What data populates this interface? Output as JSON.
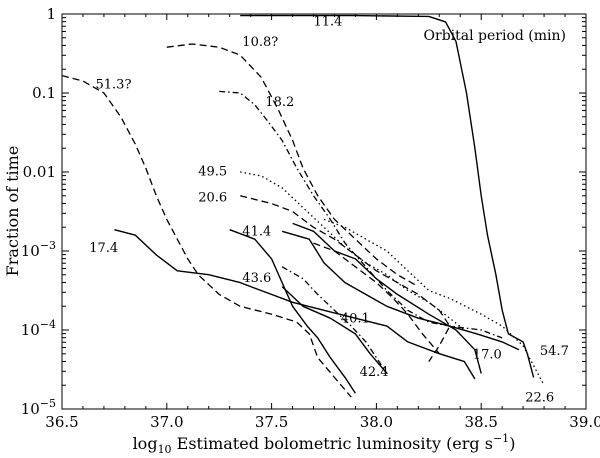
{
  "chart_data": {
    "type": "line",
    "title": "",
    "xlabel": "log10 Estimated bolometric luminosity (erg s−1)",
    "xlabel_parts": {
      "log": "log",
      "log_sub": "10",
      "main": " Estimated bolometric luminosity (erg s",
      "sup": "−1",
      "close": ")"
    },
    "ylabel": "Fraction of time",
    "xlim": [
      36.5,
      39.0
    ],
    "ylim_log10": [
      -5,
      0
    ],
    "yscale": "log",
    "x_ticks": [
      36.5,
      37.0,
      37.5,
      38.0,
      38.5,
      39.0
    ],
    "x_tick_labels": [
      "36.5",
      "37.0",
      "37.5",
      "38.0",
      "38.5",
      "39.0"
    ],
    "y_ticks_log10": [
      0,
      -1,
      -2,
      -3,
      -4,
      -5
    ],
    "y_tick_labels": [
      {
        "plain": "1"
      },
      {
        "plain": "0.1"
      },
      {
        "plain": "0.01"
      },
      {
        "base": "10",
        "exp": "−3"
      },
      {
        "base": "10",
        "exp": "−4"
      },
      {
        "base": "10",
        "exp": "−5"
      }
    ],
    "legend_title": "Orbital period (min)",
    "series": [
      {
        "name": "11.4",
        "style": "solid",
        "label_at": [
          37.7,
          -0.08
        ],
        "points": [
          [
            37.35,
            -0.02
          ],
          [
            37.9,
            -0.02
          ],
          [
            38.25,
            -0.03
          ],
          [
            38.33,
            -0.1
          ],
          [
            38.38,
            -0.35
          ],
          [
            38.43,
            -1.0
          ],
          [
            38.47,
            -1.7
          ],
          [
            38.5,
            -2.3
          ],
          [
            38.53,
            -2.8
          ],
          [
            38.57,
            -3.3
          ],
          [
            38.6,
            -3.75
          ],
          [
            38.63,
            -4.05
          ],
          [
            38.7,
            -4.15
          ],
          [
            38.72,
            -4.3
          ],
          [
            38.75,
            -4.6
          ]
        ]
      },
      {
        "name": "54.7",
        "style": "solid",
        "label_at": [
          38.78,
          -4.25
        ],
        "points": [
          [
            37.55,
            -2.75
          ],
          [
            37.68,
            -2.85
          ],
          [
            37.75,
            -3.15
          ],
          [
            37.85,
            -3.4
          ],
          [
            38.05,
            -3.7
          ],
          [
            38.2,
            -3.85
          ],
          [
            38.35,
            -3.95
          ],
          [
            38.48,
            -4.05
          ],
          [
            38.6,
            -4.15
          ],
          [
            38.68,
            -4.25
          ]
        ]
      },
      {
        "name": "41.4",
        "style": "solid",
        "label_at": [
          37.36,
          -2.74
        ],
        "points": [
          [
            37.3,
            -2.73
          ],
          [
            37.42,
            -2.85
          ],
          [
            37.5,
            -3.1
          ],
          [
            37.55,
            -3.4
          ],
          [
            37.6,
            -3.7
          ],
          [
            37.67,
            -3.95
          ],
          [
            37.72,
            -4.1
          ],
          [
            37.78,
            -4.35
          ],
          [
            37.85,
            -4.6
          ],
          [
            37.9,
            -4.8
          ]
        ]
      },
      {
        "name": "43.6",
        "style": "solid",
        "label_at": [
          37.36,
          -3.33
        ],
        "points": [
          [
            37.55,
            -3.45
          ],
          [
            37.65,
            -3.7
          ],
          [
            37.78,
            -3.85
          ],
          [
            37.9,
            -4.05
          ],
          [
            37.97,
            -4.3
          ],
          [
            38.05,
            -4.55
          ]
        ]
      },
      {
        "name": "17.4",
        "style": "solid",
        "label_at": [
          36.63,
          -2.95
        ],
        "points": [
          [
            36.75,
            -2.73
          ],
          [
            36.85,
            -2.8
          ],
          [
            36.95,
            -3.05
          ],
          [
            37.05,
            -3.25
          ],
          [
            37.2,
            -3.3
          ],
          [
            37.35,
            -3.4
          ],
          [
            37.45,
            -3.5
          ],
          [
            37.6,
            -3.65
          ],
          [
            37.75,
            -3.75
          ],
          [
            37.9,
            -3.85
          ],
          [
            38.05,
            -3.95
          ],
          [
            38.15,
            -4.15
          ],
          [
            38.3,
            -4.3
          ],
          [
            38.42,
            -4.4
          ],
          [
            38.47,
            -4.62
          ]
        ]
      },
      {
        "name": "17.0",
        "style": "solid",
        "label_at": [
          38.46,
          -4.3
        ],
        "points": [
          [
            37.6,
            -2.65
          ],
          [
            37.7,
            -2.75
          ],
          [
            37.8,
            -3.0
          ],
          [
            37.9,
            -3.1
          ],
          [
            38.0,
            -3.35
          ],
          [
            38.1,
            -3.55
          ],
          [
            38.25,
            -3.8
          ],
          [
            38.38,
            -4.0
          ],
          [
            38.47,
            -4.25
          ],
          [
            38.5,
            -4.55
          ]
        ]
      },
      {
        "name": "10.8?",
        "style": "dashed",
        "label_at": [
          37.36,
          -0.34
        ],
        "points": [
          [
            37.0,
            -0.42
          ],
          [
            37.12,
            -0.38
          ],
          [
            37.25,
            -0.42
          ],
          [
            37.35,
            -0.52
          ],
          [
            37.45,
            -0.8
          ],
          [
            37.53,
            -1.2
          ],
          [
            37.6,
            -1.6
          ],
          [
            37.65,
            -1.95
          ],
          [
            37.72,
            -2.3
          ],
          [
            37.8,
            -2.6
          ],
          [
            37.9,
            -2.85
          ],
          [
            38.0,
            -3.1
          ],
          [
            38.1,
            -3.3
          ],
          [
            38.2,
            -3.45
          ]
        ]
      },
      {
        "name": "51.3?",
        "style": "dashed",
        "label_at": [
          36.66,
          -0.88
        ],
        "points": [
          [
            36.5,
            -0.78
          ],
          [
            36.6,
            -0.85
          ],
          [
            36.7,
            -1.0
          ],
          [
            36.78,
            -1.3
          ],
          [
            36.85,
            -1.65
          ],
          [
            36.9,
            -1.95
          ],
          [
            36.95,
            -2.3
          ],
          [
            37.0,
            -2.6
          ],
          [
            37.05,
            -2.85
          ],
          [
            37.08,
            -3.0
          ],
          [
            37.1,
            -3.1
          ],
          [
            37.15,
            -3.3
          ],
          [
            37.25,
            -3.55
          ],
          [
            37.35,
            -3.7
          ],
          [
            37.5,
            -3.8
          ],
          [
            37.62,
            -3.9
          ],
          [
            37.68,
            -4.05
          ],
          [
            37.72,
            -4.35
          ],
          [
            37.8,
            -4.6
          ],
          [
            37.88,
            -4.85
          ]
        ]
      },
      {
        "name": "20.6",
        "style": "dashed",
        "label_at": [
          37.15,
          -2.31
        ],
        "points": [
          [
            37.35,
            -2.3
          ],
          [
            37.5,
            -2.4
          ],
          [
            37.6,
            -2.5
          ],
          [
            37.7,
            -2.7
          ],
          [
            37.8,
            -2.85
          ],
          [
            37.9,
            -3.05
          ],
          [
            38.0,
            -3.25
          ],
          [
            38.1,
            -3.4
          ],
          [
            38.2,
            -3.55
          ],
          [
            38.3,
            -3.75
          ],
          [
            38.35,
            -3.95
          ],
          [
            38.3,
            -4.2
          ],
          [
            38.25,
            -4.4
          ]
        ]
      },
      {
        "name": "40.1",
        "style": "dashed",
        "label_at": [
          37.83,
          -3.84
        ],
        "points": [
          [
            37.7,
            -2.9
          ],
          [
            37.8,
            -3.0
          ],
          [
            37.9,
            -3.2
          ],
          [
            38.0,
            -3.4
          ],
          [
            38.08,
            -3.6
          ],
          [
            38.15,
            -3.8
          ],
          [
            38.22,
            -4.05
          ],
          [
            38.3,
            -4.3
          ]
        ]
      },
      {
        "name": "42.4",
        "style": "dashdot",
        "label_at": [
          37.92,
          -4.52
        ],
        "points": [
          [
            37.55,
            -3.2
          ],
          [
            37.65,
            -3.35
          ],
          [
            37.72,
            -3.55
          ],
          [
            37.8,
            -3.75
          ],
          [
            37.88,
            -3.95
          ],
          [
            37.95,
            -4.15
          ],
          [
            38.0,
            -4.35
          ],
          [
            38.05,
            -4.55
          ]
        ]
      },
      {
        "name": "18.2",
        "style": "dashdot",
        "label_at": [
          37.47,
          -1.1
        ],
        "points": [
          [
            37.25,
            -0.98
          ],
          [
            37.35,
            -1.0
          ],
          [
            37.42,
            -1.15
          ],
          [
            37.48,
            -1.35
          ],
          [
            37.55,
            -1.6
          ],
          [
            37.62,
            -1.95
          ],
          [
            37.7,
            -2.3
          ],
          [
            37.78,
            -2.6
          ],
          [
            37.85,
            -2.9
          ],
          [
            37.95,
            -3.2
          ],
          [
            38.05,
            -3.5
          ],
          [
            38.15,
            -3.75
          ],
          [
            38.25,
            -3.9
          ],
          [
            38.35,
            -3.95
          ],
          [
            38.5,
            -4.0
          ],
          [
            38.6,
            -4.1
          ]
        ]
      },
      {
        "name": "49.5",
        "style": "dotted",
        "label_at": [
          37.15,
          -1.98
        ],
        "points": [
          [
            37.35,
            -2.0
          ],
          [
            37.45,
            -2.05
          ],
          [
            37.55,
            -2.2
          ],
          [
            37.65,
            -2.45
          ],
          [
            37.75,
            -2.7
          ],
          [
            37.85,
            -2.95
          ],
          [
            37.95,
            -3.15
          ],
          [
            38.05,
            -3.3
          ],
          [
            38.15,
            -3.5
          ],
          [
            38.25,
            -3.65
          ],
          [
            38.35,
            -3.85
          ],
          [
            38.42,
            -4.0
          ]
        ]
      },
      {
        "name": "22.6",
        "style": "dotted",
        "label_at": [
          38.71,
          -4.84
        ],
        "points": [
          [
            37.75,
            -2.6
          ],
          [
            37.85,
            -2.7
          ],
          [
            37.95,
            -2.85
          ],
          [
            38.05,
            -3.0
          ],
          [
            38.15,
            -3.25
          ],
          [
            38.25,
            -3.5
          ],
          [
            38.35,
            -3.6
          ],
          [
            38.5,
            -3.8
          ],
          [
            38.6,
            -3.95
          ],
          [
            38.7,
            -4.2
          ],
          [
            38.75,
            -4.45
          ],
          [
            38.8,
            -4.7
          ]
        ]
      }
    ]
  }
}
